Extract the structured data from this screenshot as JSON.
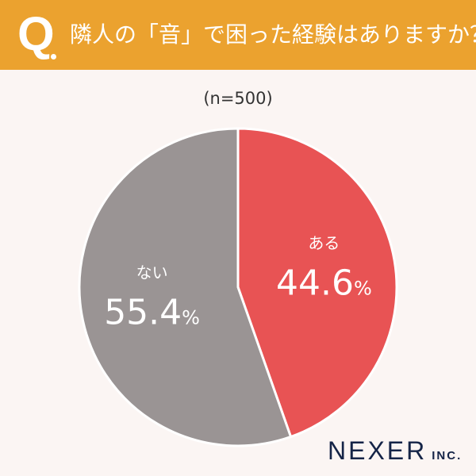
{
  "header": {
    "q_mark": "Q",
    "title": "隣人の「音」で困った経験はありますか？"
  },
  "sample": "(n=500)",
  "chart_data": {
    "type": "pie",
    "title": "隣人の「音」で困った経験はありますか？",
    "start": "top",
    "direction": "clockwise",
    "slices": [
      {
        "label": "ある",
        "value": 44.6,
        "display": "44.6",
        "color": "#E85354"
      },
      {
        "label": "ない",
        "value": 55.4,
        "display": "55.4",
        "color": "#9A9494"
      }
    ],
    "unit": "%"
  },
  "logo": {
    "name": "NEXER",
    "suffix": "INC."
  }
}
